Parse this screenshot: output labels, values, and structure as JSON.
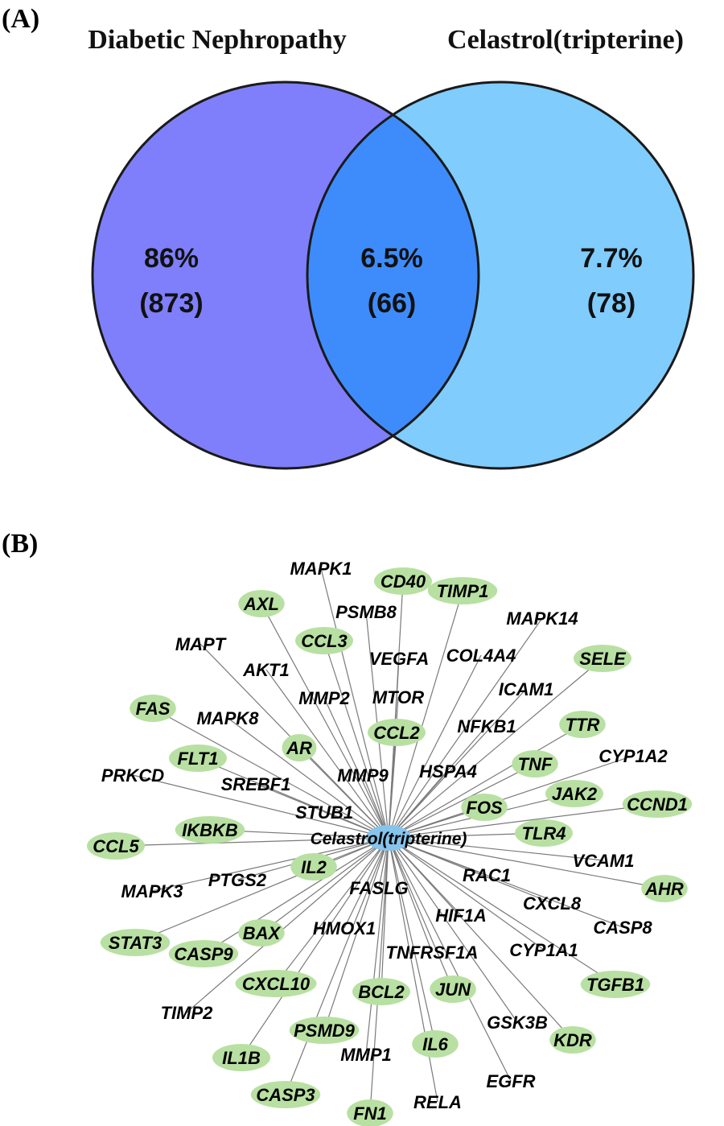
{
  "panels": {
    "a_label": "(A)",
    "b_label": "(B)"
  },
  "venn": {
    "left": {
      "title": "Diabetic Nephropathy",
      "percent": "86%",
      "count": "(873)",
      "color": "#7f7ffb"
    },
    "overlap": {
      "percent": "6.5%",
      "count": "(66)",
      "color": "#3e8cfb"
    },
    "right": {
      "title": "Celastrol(tripterine)",
      "percent": "7.7%",
      "count": "(78)",
      "color": "#80ccfd"
    }
  },
  "network": {
    "hub": {
      "label": "Celastrol(tripterine)",
      "color": "#86c4ec"
    },
    "node_color": "#b8e0a2",
    "nodes": [
      "MAPK1",
      "CD40",
      "AXL",
      "PSMB8",
      "TIMP1",
      "MAPK14",
      "MAPT",
      "CCL3",
      "VEGFA",
      "COL4A4",
      "SELE",
      "AKT1",
      "MMP2",
      "MTOR",
      "ICAM1",
      "FAS",
      "MAPK8",
      "CCL2",
      "NFKB1",
      "TTR",
      "AR",
      "CYP1A2",
      "FLT1",
      "MMP9",
      "HSPA4",
      "TNF",
      "PRKCD",
      "SREBF1",
      "JAK2",
      "CCND1",
      "FOS",
      "STUB1",
      "IKBKB",
      "TLR4",
      "CCL5",
      "VCAM1",
      "IL2",
      "MAPK3",
      "PTGS2",
      "RAC1",
      "FASLG",
      "AHR",
      "CXCL8",
      "HIF1A",
      "CASP8",
      "STAT3",
      "BAX",
      "HMOX1",
      "CASP9",
      "CYP1A1",
      "TNFRSF1A",
      "TGFB1",
      "CXCL10",
      "BCL2",
      "JUN",
      "TIMP2",
      "GSK3B",
      "KDR",
      "PSMD9",
      "IL6",
      "IL1B",
      "MMP1",
      "EGFR",
      "CASP3",
      "RELA",
      "FN1"
    ],
    "ellipse_nodes": [
      "CD40",
      "AXL",
      "TIMP1",
      "CCL3",
      "SELE",
      "FAS",
      "CCL2",
      "TTR",
      "AR",
      "FLT1",
      "TNF",
      "JAK2",
      "CCND1",
      "FOS",
      "IKBKB",
      "TLR4",
      "CCL5",
      "IL2",
      "AHR",
      "BAX",
      "STAT3",
      "CASP9",
      "CXCL10",
      "BCL2",
      "JUN",
      "TGFB1",
      "KDR",
      "PSMD9",
      "IL6",
      "IL1B",
      "CASP3",
      "FN1"
    ]
  }
}
